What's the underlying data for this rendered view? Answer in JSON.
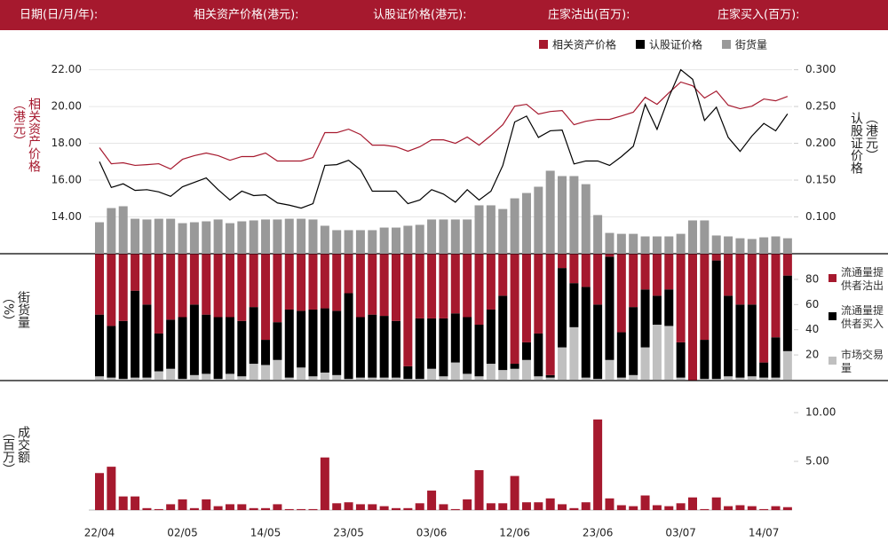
{
  "header": {
    "labels": [
      "日期(日/月/年):",
      "相关资产价格(港元):",
      "认股证价格(港元):",
      "庄家沽出(百万):",
      "庄家买入(百万):"
    ]
  },
  "chart_data": [
    {
      "type": "combo",
      "y_title": "相关资产价格（港元）",
      "y2_title": "认股证价格（港元）",
      "ylim": [
        12,
        22.8
      ],
      "yticks": [
        {
          "value": 14,
          "label": "14.00"
        },
        {
          "value": 16,
          "label": "16.00"
        },
        {
          "value": 18,
          "label": "18.00"
        },
        {
          "value": 20,
          "label": "20.00"
        },
        {
          "value": 22,
          "label": "22.00"
        }
      ],
      "y2lim": [
        0.05,
        0.32
      ],
      "y2ticks": [
        {
          "value": 0.1,
          "label": "0.100"
        },
        {
          "value": 0.15,
          "label": "0.150"
        },
        {
          "value": 0.2,
          "label": "0.200"
        },
        {
          "value": 0.25,
          "label": "0.250"
        },
        {
          "value": 0.3,
          "label": "0.300"
        }
      ],
      "grid": true,
      "series": [
        {
          "name": "相关资产价格",
          "type": "line",
          "color": "#a6192e",
          "values": [
            17.76,
            16.89,
            16.94,
            16.8,
            16.84,
            16.89,
            16.6,
            17.13,
            17.33,
            17.47,
            17.33,
            17.08,
            17.28,
            17.28,
            17.47,
            17.04,
            17.04,
            17.04,
            17.23,
            18.58,
            18.58,
            18.77,
            18.48,
            17.9,
            17.9,
            17.81,
            17.57,
            17.81,
            18.19,
            18.19,
            18.0,
            18.34,
            17.9,
            18.43,
            19.01,
            20.02,
            20.12,
            19.59,
            19.73,
            19.78,
            19.01,
            19.2,
            19.3,
            19.3,
            19.49,
            19.69,
            20.5,
            20.12,
            20.75,
            21.33,
            21.13,
            20.46,
            20.84,
            20.07,
            19.88,
            20.02,
            20.41,
            20.31,
            20.55
          ]
        },
        {
          "name": "认股证价格",
          "type": "line",
          "axis": "y2",
          "color": "#000000",
          "values": [
            0.175,
            0.14,
            0.145,
            0.136,
            0.137,
            0.134,
            0.128,
            0.141,
            0.147,
            0.153,
            0.137,
            0.123,
            0.135,
            0.129,
            0.13,
            0.119,
            0.116,
            0.112,
            0.118,
            0.17,
            0.171,
            0.177,
            0.164,
            0.135,
            0.135,
            0.135,
            0.118,
            0.123,
            0.137,
            0.131,
            0.12,
            0.137,
            0.123,
            0.135,
            0.17,
            0.229,
            0.237,
            0.208,
            0.217,
            0.218,
            0.172,
            0.176,
            0.176,
            0.17,
            0.182,
            0.196,
            0.253,
            0.219,
            0.263,
            0.3,
            0.287,
            0.231,
            0.249,
            0.208,
            0.189,
            0.21,
            0.227,
            0.217,
            0.24
          ]
        },
        {
          "name": "街货量",
          "type": "bar",
          "color": "#999999",
          "values": [
            13.71,
            14.48,
            14.58,
            13.9,
            13.86,
            13.9,
            13.9,
            13.66,
            13.71,
            13.76,
            13.86,
            13.66,
            13.76,
            13.81,
            13.86,
            13.86,
            13.9,
            13.9,
            13.86,
            13.52,
            13.28,
            13.28,
            13.28,
            13.28,
            13.42,
            13.42,
            13.52,
            13.57,
            13.86,
            13.86,
            13.86,
            13.86,
            14.63,
            14.63,
            14.43,
            15.01,
            15.3,
            15.64,
            16.51,
            16.22,
            16.22,
            15.78,
            14.1,
            13.13,
            13.08,
            13.08,
            12.94,
            12.94,
            12.94,
            13.08,
            13.81,
            13.81,
            12.99,
            12.94,
            12.84,
            12.8,
            12.89,
            12.94,
            12.84
          ]
        }
      ]
    },
    {
      "type": "stacked_bar",
      "y_title": "街货量（%）",
      "ylim": [
        0,
        100
      ],
      "yticks": [
        20,
        40,
        60,
        80
      ],
      "series": [
        {
          "name": "流通量提供者沽出",
          "color": "#a6192e",
          "values": [
            48,
            57,
            53,
            29,
            40,
            63,
            52,
            50,
            40,
            48,
            50,
            50,
            53,
            42,
            68,
            54,
            44,
            45,
            44,
            43,
            45,
            31,
            50,
            48,
            49,
            53,
            89,
            51,
            51,
            51,
            47,
            50,
            56,
            44,
            33,
            87,
            70,
            63,
            96,
            11,
            23,
            26,
            40,
            2,
            62,
            42,
            28,
            33,
            28,
            70,
            100,
            68,
            5,
            33,
            40,
            40,
            86,
            66,
            17
          ]
        },
        {
          "name": "流通量提供者买入",
          "color": "#000000",
          "values": [
            49,
            41,
            46,
            69,
            58,
            30,
            39,
            49,
            56,
            47,
            49,
            45,
            44,
            45,
            20,
            30,
            54,
            45,
            53,
            51,
            51,
            68,
            48,
            50,
            49,
            45,
            10,
            48,
            40,
            46,
            39,
            45,
            41,
            43,
            59,
            4,
            14,
            34,
            2,
            63,
            35,
            72,
            59,
            82,
            36,
            54,
            46,
            23,
            29,
            28,
            0,
            31,
            94,
            64,
            58,
            57,
            12,
            32,
            60
          ]
        },
        {
          "name": "市场交易量",
          "color": "#c0c0c0",
          "values": [
            3,
            2,
            1,
            2,
            2,
            7,
            9,
            1,
            4,
            5,
            1,
            5,
            3,
            13,
            12,
            16,
            2,
            10,
            3,
            6,
            4,
            1,
            2,
            2,
            2,
            2,
            1,
            1,
            9,
            3,
            14,
            5,
            3,
            13,
            8,
            9,
            16,
            3,
            2,
            26,
            42,
            2,
            1,
            16,
            2,
            4,
            26,
            44,
            43,
            2,
            0,
            1,
            1,
            3,
            2,
            3,
            2,
            2,
            23
          ]
        }
      ]
    },
    {
      "type": "bar",
      "y_title": "成交额（百万）",
      "color": "#a6192e",
      "ylim": [
        0,
        13.2
      ],
      "yticks": [
        {
          "value": 5,
          "label": "5.00"
        },
        {
          "value": 10,
          "label": "10.00"
        }
      ],
      "categories": [
        "22/04",
        null,
        null,
        null,
        null,
        null,
        null,
        "02/05",
        null,
        null,
        null,
        null,
        null,
        null,
        "14/05",
        null,
        null,
        null,
        null,
        null,
        null,
        "23/05",
        null,
        null,
        null,
        null,
        null,
        null,
        "03/06",
        null,
        null,
        null,
        null,
        null,
        null,
        "12/06",
        null,
        null,
        null,
        null,
        null,
        null,
        "23/06",
        null,
        null,
        null,
        null,
        null,
        null,
        "03/07",
        null,
        null,
        null,
        null,
        null,
        null,
        "14/07",
        null,
        null
      ],
      "values": [
        3.8,
        4.45,
        1.4,
        1.4,
        0.2,
        0.1,
        0.6,
        1.1,
        0.2,
        1.1,
        0.4,
        0.6,
        0.6,
        0.2,
        0.2,
        0.6,
        0.1,
        0.1,
        0.1,
        5.4,
        0.7,
        0.8,
        0.6,
        0.6,
        0.4,
        0.2,
        0.2,
        0.7,
        2.0,
        0.6,
        0.1,
        1.1,
        4.1,
        0.7,
        0.7,
        3.5,
        0.8,
        0.8,
        1.2,
        0.6,
        0.2,
        0.8,
        9.3,
        1.2,
        0.5,
        0.4,
        1.5,
        0.5,
        0.4,
        0.7,
        1.3,
        0.1,
        1.3,
        0.4,
        0.5,
        0.4,
        0.1,
        0.4,
        0.3
      ]
    }
  ]
}
